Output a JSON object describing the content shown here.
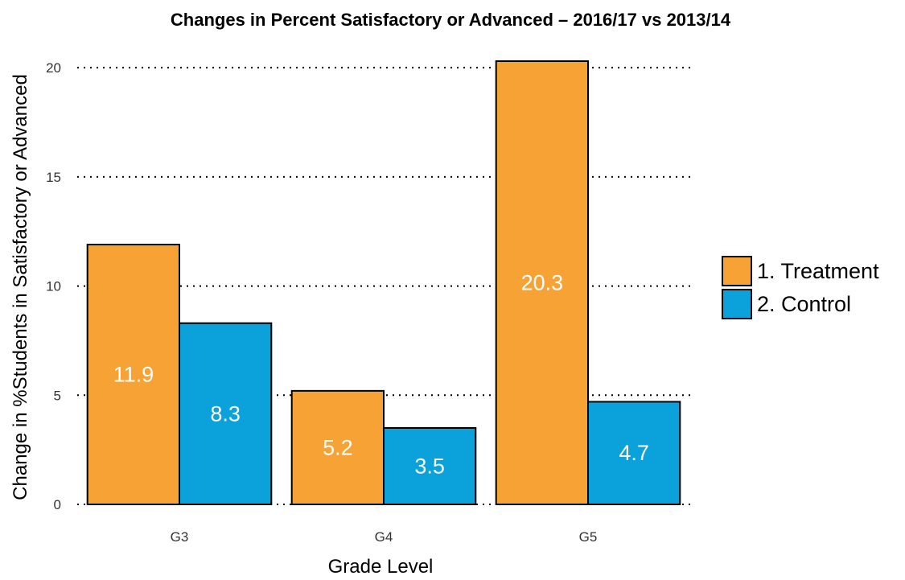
{
  "chart_data": {
    "type": "bar",
    "title": "Changes in Percent Satisfactory or Advanced – 2016/17 vs 2013/14",
    "xlabel": "Grade Level",
    "ylabel": "Change in %Students in Satisfactory or Advanced",
    "categories": [
      "G3",
      "G4",
      "G5"
    ],
    "series": [
      {
        "name": "1. Treatment",
        "color": "#F7A234",
        "values": [
          11.9,
          5.2,
          20.3
        ],
        "labels": [
          "11.9",
          "5.2",
          "20.3"
        ]
      },
      {
        "name": "2. Control",
        "color": "#0BA1DA",
        "values": [
          8.3,
          3.5,
          4.7
        ],
        "labels": [
          "8.3",
          "3.5",
          "4.7"
        ]
      }
    ],
    "yticks": [
      0,
      5,
      10,
      15,
      20
    ],
    "ylim": [
      0,
      20.3
    ],
    "grid": "horizontal dotted",
    "legend_position": "right"
  }
}
